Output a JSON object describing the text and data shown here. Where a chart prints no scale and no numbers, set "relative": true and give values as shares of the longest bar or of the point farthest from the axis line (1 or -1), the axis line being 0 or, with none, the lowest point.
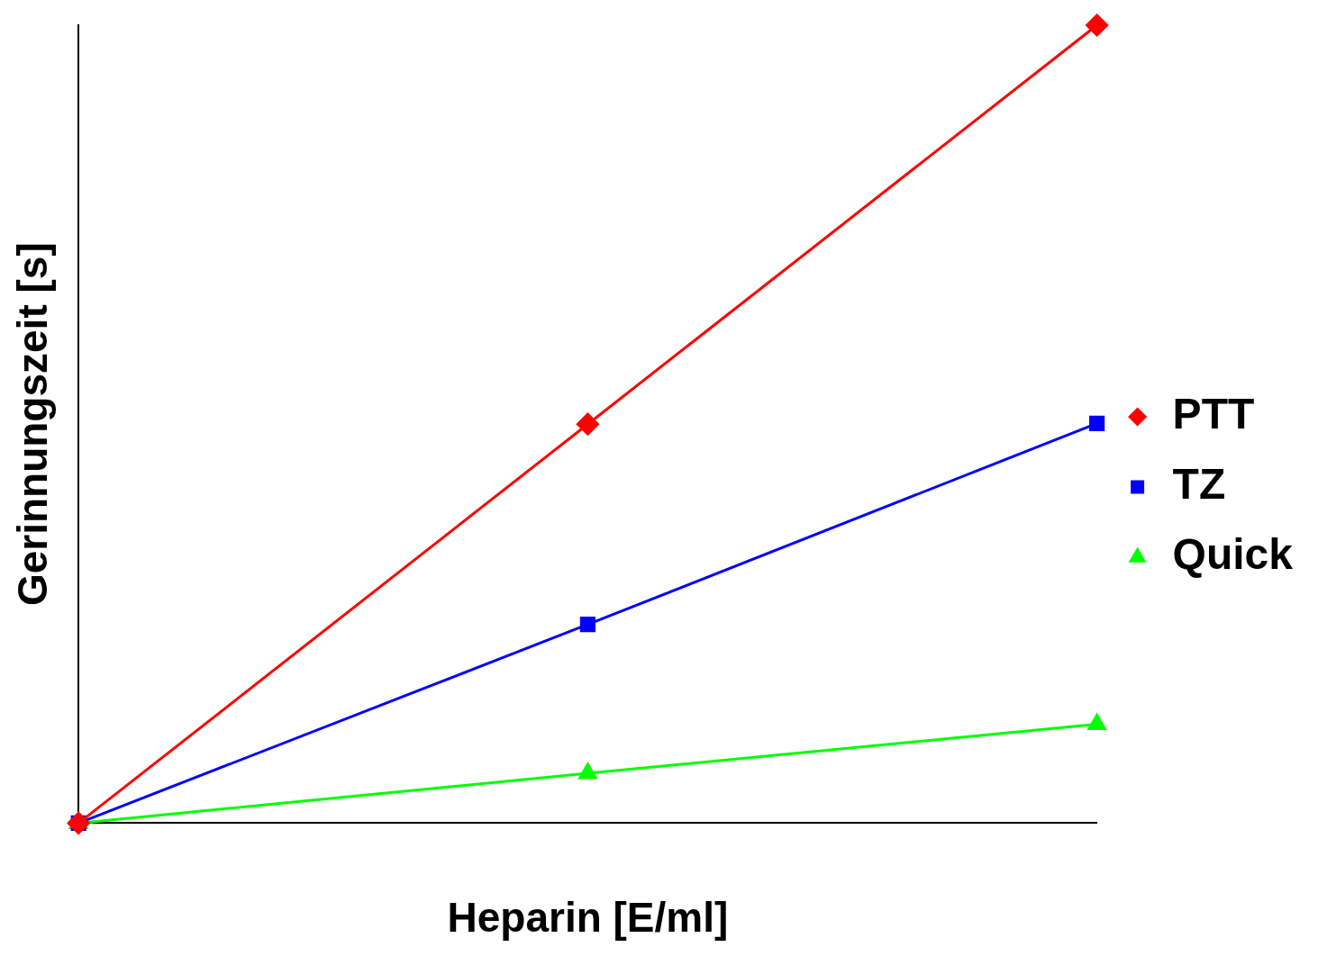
{
  "chart_data": {
    "type": "line",
    "xlabel": "Heparin [E/ml]",
    "ylabel": "Gerinnungszeit [s]",
    "categories": [
      null,
      null,
      null
    ],
    "relative": true,
    "grid": false,
    "legend": "right",
    "line_style": "solid",
    "series": [
      {
        "name": "PTT",
        "color": "#ff0000",
        "marker": "diamond",
        "values": [
          0,
          0.5,
          1
        ]
      },
      {
        "name": "TZ",
        "color": "#0000ff",
        "marker": "square",
        "values": [
          0,
          0.249,
          0.501
        ]
      },
      {
        "name": "Quick",
        "color": "#00ff00",
        "marker": "triangle",
        "values": [
          0,
          0.0625,
          0.124
        ]
      }
    ]
  }
}
